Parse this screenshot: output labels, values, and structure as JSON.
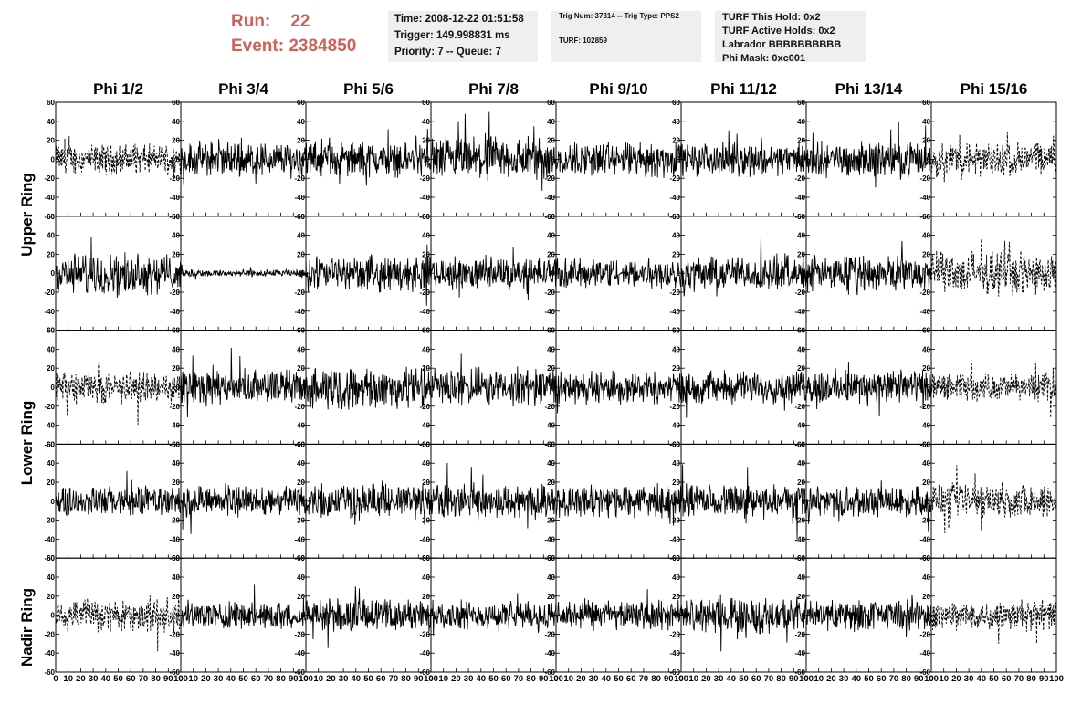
{
  "header": {
    "run_label": "Run:",
    "run_value": "22",
    "event_label": "Event:",
    "event_value": "2384850",
    "time": "Time: 2008-12-22 01:51:58",
    "trigger": "Trigger: 149.998831 ms",
    "priority": "Priority: 7 -- Queue: 7",
    "trig_num": "Trig Num: 37314 -- Trig Type: PPS2",
    "turf": "TURF: 102859",
    "turf_this_hold": "TURF This Hold: 0x2",
    "turf_active_holds": "TURF Active Holds: 0x2",
    "labrador": "Labrador BBBBBBBBBB",
    "phi_mask": "Phi Mask: 0xc001"
  },
  "columns": [
    "Phi 1/2",
    "Phi 3/4",
    "Phi 5/6",
    "Phi 7/8",
    "Phi 9/10",
    "Phi 11/12",
    "Phi 13/14",
    "Phi 15/16"
  ],
  "row_groups": [
    {
      "label": "Upper Ring"
    },
    {
      "label": "Lower Ring"
    },
    {
      "label": "Nadir Ring"
    }
  ],
  "chart_data": {
    "type": "line",
    "panel_rows": 5,
    "panel_cols": 8,
    "xlim": [
      0,
      100
    ],
    "ylim": [
      -60,
      60
    ],
    "xticks": [
      0,
      10,
      20,
      30,
      40,
      50,
      60,
      70,
      80,
      90,
      100
    ],
    "yticks": [
      -60,
      -40,
      -20,
      0,
      20,
      40,
      60
    ],
    "x_tick_labels": [
      "0",
      "10",
      "20",
      "30",
      "40",
      "50",
      "60",
      "70",
      "80",
      "90",
      "100"
    ],
    "y_tick_labels": [
      "-60",
      "-40",
      "-20",
      "0",
      "20",
      "40",
      "60"
    ],
    "panel_amplitudes": [
      [
        12,
        14,
        14,
        18,
        14,
        13,
        14,
        14
      ],
      [
        16,
        3,
        14,
        13,
        12,
        14,
        14,
        17
      ],
      [
        13,
        14,
        17,
        15,
        13,
        13,
        14,
        11
      ],
      [
        12,
        12,
        14,
        14,
        13,
        13,
        12,
        14
      ],
      [
        14,
        11,
        13,
        11,
        12,
        14,
        12,
        12
      ]
    ],
    "panel_dashed": [
      [
        true,
        false,
        false,
        false,
        false,
        false,
        false,
        true
      ],
      [
        false,
        false,
        false,
        false,
        false,
        false,
        false,
        true
      ],
      [
        true,
        false,
        false,
        false,
        false,
        false,
        false,
        true
      ],
      [
        false,
        false,
        false,
        false,
        false,
        false,
        false,
        true
      ],
      [
        true,
        false,
        false,
        false,
        false,
        false,
        false,
        true
      ]
    ]
  }
}
